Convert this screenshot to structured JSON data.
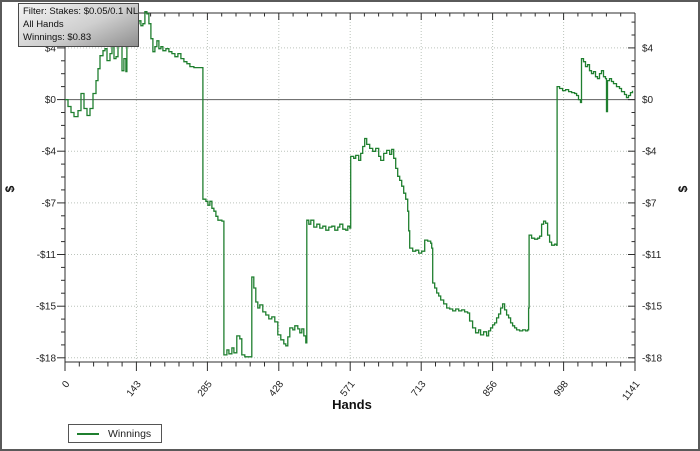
{
  "window": {
    "background": "#ffffff",
    "border_color": "#5a5a5a"
  },
  "info_box": {
    "line1": "Filter: Stakes: $0.05/0.1 NL",
    "line2": "All Hands",
    "line3": "Winnings: $0.83"
  },
  "legend": {
    "items": [
      {
        "label": "Winnings",
        "color": "#1f7f2f"
      }
    ]
  },
  "chart_data": {
    "type": "line",
    "title": "",
    "xlabel": "Hands",
    "ylabel": "$",
    "xlim": [
      0,
      1141
    ],
    "ylim": [
      -18.6,
      6.4
    ],
    "grid": "dotted",
    "legend_position": "bottom-left",
    "zero_line_value": 0.2,
    "x_ticks": [
      0,
      143,
      285,
      428,
      571,
      713,
      856,
      998,
      1141
    ],
    "y_ticks": [
      {
        "label": "$4",
        "value": 3.9
      },
      {
        "label": "$0",
        "value": 0.2
      },
      {
        "label": "-$4",
        "value": -3.5
      },
      {
        "label": "-$7",
        "value": -7.2
      },
      {
        "label": "-$11",
        "value": -10.9
      },
      {
        "label": "-$15",
        "value": -14.6
      },
      {
        "label": "-$18",
        "value": -18.3
      }
    ],
    "colors": {
      "line": "#1f7f2f",
      "grid": "#bcc4bc",
      "axis": "#2e2e2e",
      "zero_line": "#5f5f5f",
      "tick_label": "#222222"
    },
    "series": [
      {
        "name": "Winnings",
        "color": "#1f7f2f",
        "points": [
          [
            0,
            0.2
          ],
          [
            6,
            -0.3
          ],
          [
            12,
            -0.73
          ],
          [
            18,
            -1.02
          ],
          [
            26,
            -0.59
          ],
          [
            32,
            0.63
          ],
          [
            38,
            -0.44
          ],
          [
            44,
            -0.94
          ],
          [
            50,
            -0.44
          ],
          [
            56,
            0.63
          ],
          [
            62,
            1.56
          ],
          [
            66,
            2.41
          ],
          [
            70,
            3.34
          ],
          [
            76,
            3.7
          ],
          [
            80,
            3.84
          ],
          [
            84,
            2.99
          ],
          [
            90,
            3.49
          ],
          [
            94,
            4.2
          ],
          [
            98,
            3.13
          ],
          [
            102,
            3.27
          ],
          [
            106,
            4.56
          ],
          [
            110,
            4.7
          ],
          [
            114,
            2.27
          ],
          [
            118,
            3.13
          ],
          [
            122,
            2.2
          ],
          [
            124,
            6.34
          ],
          [
            128,
            6.13
          ],
          [
            132,
            5.63
          ],
          [
            136,
            4.7
          ],
          [
            140,
            5.41
          ],
          [
            144,
            5.63
          ],
          [
            148,
            5.84
          ],
          [
            152,
            5.49
          ],
          [
            156,
            5.63
          ],
          [
            160,
            6.49
          ],
          [
            164,
            6.34
          ],
          [
            168,
            5.63
          ],
          [
            172,
            4.56
          ],
          [
            176,
            3.63
          ],
          [
            180,
            3.99
          ],
          [
            184,
            4.41
          ],
          [
            188,
            3.84
          ],
          [
            192,
            3.99
          ],
          [
            196,
            3.7
          ],
          [
            202,
            3.84
          ],
          [
            208,
            3.63
          ],
          [
            214,
            3.49
          ],
          [
            220,
            3.27
          ],
          [
            226,
            3.49
          ],
          [
            232,
            3.13
          ],
          [
            238,
            2.91
          ],
          [
            244,
            2.77
          ],
          [
            250,
            2.56
          ],
          [
            258,
            2.49
          ],
          [
            274,
            2.49
          ],
          [
            276,
            -6.94
          ],
          [
            282,
            -7.09
          ],
          [
            286,
            -7.37
          ],
          [
            290,
            -7.09
          ],
          [
            294,
            -7.59
          ],
          [
            298,
            -7.8
          ],
          [
            302,
            -8.16
          ],
          [
            306,
            -8.44
          ],
          [
            314,
            -8.51
          ],
          [
            318,
            -18.09
          ],
          [
            324,
            -17.73
          ],
          [
            328,
            -18.01
          ],
          [
            334,
            -17.59
          ],
          [
            338,
            -17.94
          ],
          [
            344,
            -16.73
          ],
          [
            350,
            -16.94
          ],
          [
            354,
            -18.09
          ],
          [
            360,
            -18.23
          ],
          [
            370,
            -18.23
          ],
          [
            374,
            -12.51
          ],
          [
            378,
            -13.3
          ],
          [
            382,
            -14.3
          ],
          [
            386,
            -14.73
          ],
          [
            390,
            -14.51
          ],
          [
            396,
            -15.01
          ],
          [
            402,
            -15.23
          ],
          [
            408,
            -15.51
          ],
          [
            414,
            -15.37
          ],
          [
            420,
            -15.73
          ],
          [
            426,
            -16.66
          ],
          [
            432,
            -17.01
          ],
          [
            438,
            -17.3
          ],
          [
            442,
            -17.44
          ],
          [
            446,
            -16.8
          ],
          [
            450,
            -16.16
          ],
          [
            456,
            -16.3
          ],
          [
            460,
            -16.01
          ],
          [
            466,
            -16.23
          ],
          [
            470,
            -16.51
          ],
          [
            474,
            -16.23
          ],
          [
            478,
            -16.73
          ],
          [
            482,
            -17.23
          ],
          [
            484,
            -8.44
          ],
          [
            488,
            -8.73
          ],
          [
            492,
            -8.44
          ],
          [
            498,
            -8.94
          ],
          [
            504,
            -8.73
          ],
          [
            510,
            -9.01
          ],
          [
            516,
            -8.87
          ],
          [
            522,
            -9.16
          ],
          [
            528,
            -8.94
          ],
          [
            534,
            -8.87
          ],
          [
            540,
            -9.16
          ],
          [
            546,
            -8.94
          ],
          [
            550,
            -8.73
          ],
          [
            556,
            -9.09
          ],
          [
            562,
            -9.16
          ],
          [
            566,
            -8.87
          ],
          [
            570,
            -9.01
          ],
          [
            572,
            -3.87
          ],
          [
            578,
            -4.01
          ],
          [
            582,
            -3.8
          ],
          [
            588,
            -4.16
          ],
          [
            592,
            -3.66
          ],
          [
            596,
            -3.16
          ],
          [
            600,
            -2.59
          ],
          [
            604,
            -3.01
          ],
          [
            610,
            -3.3
          ],
          [
            616,
            -3.51
          ],
          [
            622,
            -3.3
          ],
          [
            628,
            -3.87
          ],
          [
            632,
            -4.16
          ],
          [
            638,
            -3.66
          ],
          [
            644,
            -3.44
          ],
          [
            650,
            -3.73
          ],
          [
            654,
            -3.37
          ],
          [
            658,
            -4.01
          ],
          [
            662,
            -4.73
          ],
          [
            666,
            -5.3
          ],
          [
            670,
            -5.59
          ],
          [
            674,
            -6.01
          ],
          [
            678,
            -6.51
          ],
          [
            682,
            -6.94
          ],
          [
            686,
            -7.8
          ],
          [
            688,
            -9.2
          ],
          [
            690,
            -10.44
          ],
          [
            696,
            -10.66
          ],
          [
            702,
            -10.59
          ],
          [
            708,
            -10.8
          ],
          [
            714,
            -10.66
          ],
          [
            720,
            -9.87
          ],
          [
            726,
            -9.94
          ],
          [
            732,
            -10.09
          ],
          [
            734,
            -10.44
          ],
          [
            736,
            -12.94
          ],
          [
            740,
            -13.3
          ],
          [
            744,
            -13.66
          ],
          [
            748,
            -13.87
          ],
          [
            752,
            -14.16
          ],
          [
            758,
            -14.44
          ],
          [
            764,
            -14.73
          ],
          [
            770,
            -14.8
          ],
          [
            776,
            -14.94
          ],
          [
            782,
            -14.8
          ],
          [
            788,
            -14.94
          ],
          [
            794,
            -14.87
          ],
          [
            800,
            -15.01
          ],
          [
            806,
            -15.09
          ],
          [
            810,
            -15.66
          ],
          [
            816,
            -16.16
          ],
          [
            822,
            -16.51
          ],
          [
            828,
            -16.3
          ],
          [
            832,
            -16.66
          ],
          [
            838,
            -16.44
          ],
          [
            844,
            -16.73
          ],
          [
            848,
            -16.37
          ],
          [
            852,
            -16.16
          ],
          [
            856,
            -15.94
          ],
          [
            860,
            -15.8
          ],
          [
            864,
            -15.44
          ],
          [
            868,
            -15.16
          ],
          [
            872,
            -14.73
          ],
          [
            876,
            -14.44
          ],
          [
            880,
            -14.87
          ],
          [
            884,
            -15.23
          ],
          [
            888,
            -15.44
          ],
          [
            892,
            -15.8
          ],
          [
            896,
            -16.01
          ],
          [
            900,
            -16.16
          ],
          [
            904,
            -16.3
          ],
          [
            910,
            -16.37
          ],
          [
            916,
            -16.3
          ],
          [
            922,
            -16.37
          ],
          [
            926,
            -16.3
          ],
          [
            928,
            -14.73
          ],
          [
            929,
            -9.51
          ],
          [
            934,
            -9.73
          ],
          [
            940,
            -9.8
          ],
          [
            946,
            -9.73
          ],
          [
            950,
            -9.59
          ],
          [
            954,
            -8.73
          ],
          [
            958,
            -8.51
          ],
          [
            962,
            -8.66
          ],
          [
            966,
            -9.51
          ],
          [
            970,
            -10.01
          ],
          [
            974,
            -10.23
          ],
          [
            980,
            -10.16
          ],
          [
            984,
            -10.23
          ],
          [
            985,
            1.13
          ],
          [
            990,
            0.99
          ],
          [
            996,
            0.84
          ],
          [
            1002,
            0.91
          ],
          [
            1008,
            0.77
          ],
          [
            1014,
            0.7
          ],
          [
            1020,
            0.63
          ],
          [
            1024,
            0.49
          ],
          [
            1028,
            0.2
          ],
          [
            1032,
            -0.01
          ],
          [
            1034,
            3.13
          ],
          [
            1038,
            2.91
          ],
          [
            1042,
            2.56
          ],
          [
            1046,
            2.7
          ],
          [
            1050,
            2.27
          ],
          [
            1054,
            2.06
          ],
          [
            1058,
            2.2
          ],
          [
            1062,
            1.84
          ],
          [
            1066,
            1.7
          ],
          [
            1070,
            2.06
          ],
          [
            1074,
            2.27
          ],
          [
            1078,
            1.84
          ],
          [
            1082,
            1.7
          ],
          [
            1084,
            -0.66
          ],
          [
            1086,
            1.56
          ],
          [
            1090,
            1.7
          ],
          [
            1094,
            1.49
          ],
          [
            1098,
            1.34
          ],
          [
            1104,
            1.13
          ],
          [
            1110,
            0.99
          ],
          [
            1114,
            0.77
          ],
          [
            1120,
            0.56
          ],
          [
            1124,
            0.34
          ],
          [
            1128,
            0.49
          ],
          [
            1132,
            0.7
          ],
          [
            1136,
            0.83
          ]
        ]
      }
    ]
  }
}
